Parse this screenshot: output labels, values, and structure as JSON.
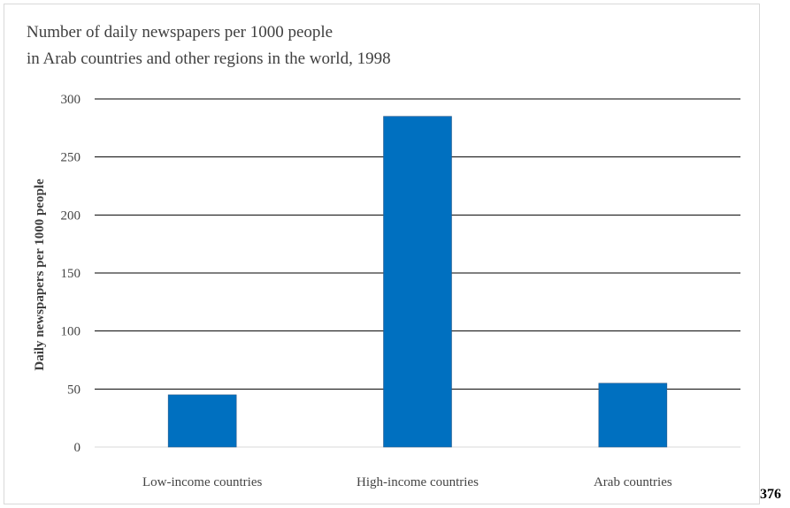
{
  "page_number": "376",
  "chart_data": {
    "type": "bar",
    "title_lines": [
      "Number of daily newspapers per 1000 people",
      "in Arab countries and other regions in the world, 1998"
    ],
    "xlabel": "",
    "ylabel": "Daily newspapers per 1000 people",
    "categories": [
      "Low-income countries",
      "High-income countries",
      "Arab countries"
    ],
    "values": [
      45,
      285,
      55
    ],
    "ylim": [
      0,
      300
    ],
    "yticks": [
      0,
      50,
      100,
      150,
      200,
      250,
      300
    ],
    "grid": true,
    "bar_color": "#0070c0",
    "grid_color": "#000000"
  }
}
